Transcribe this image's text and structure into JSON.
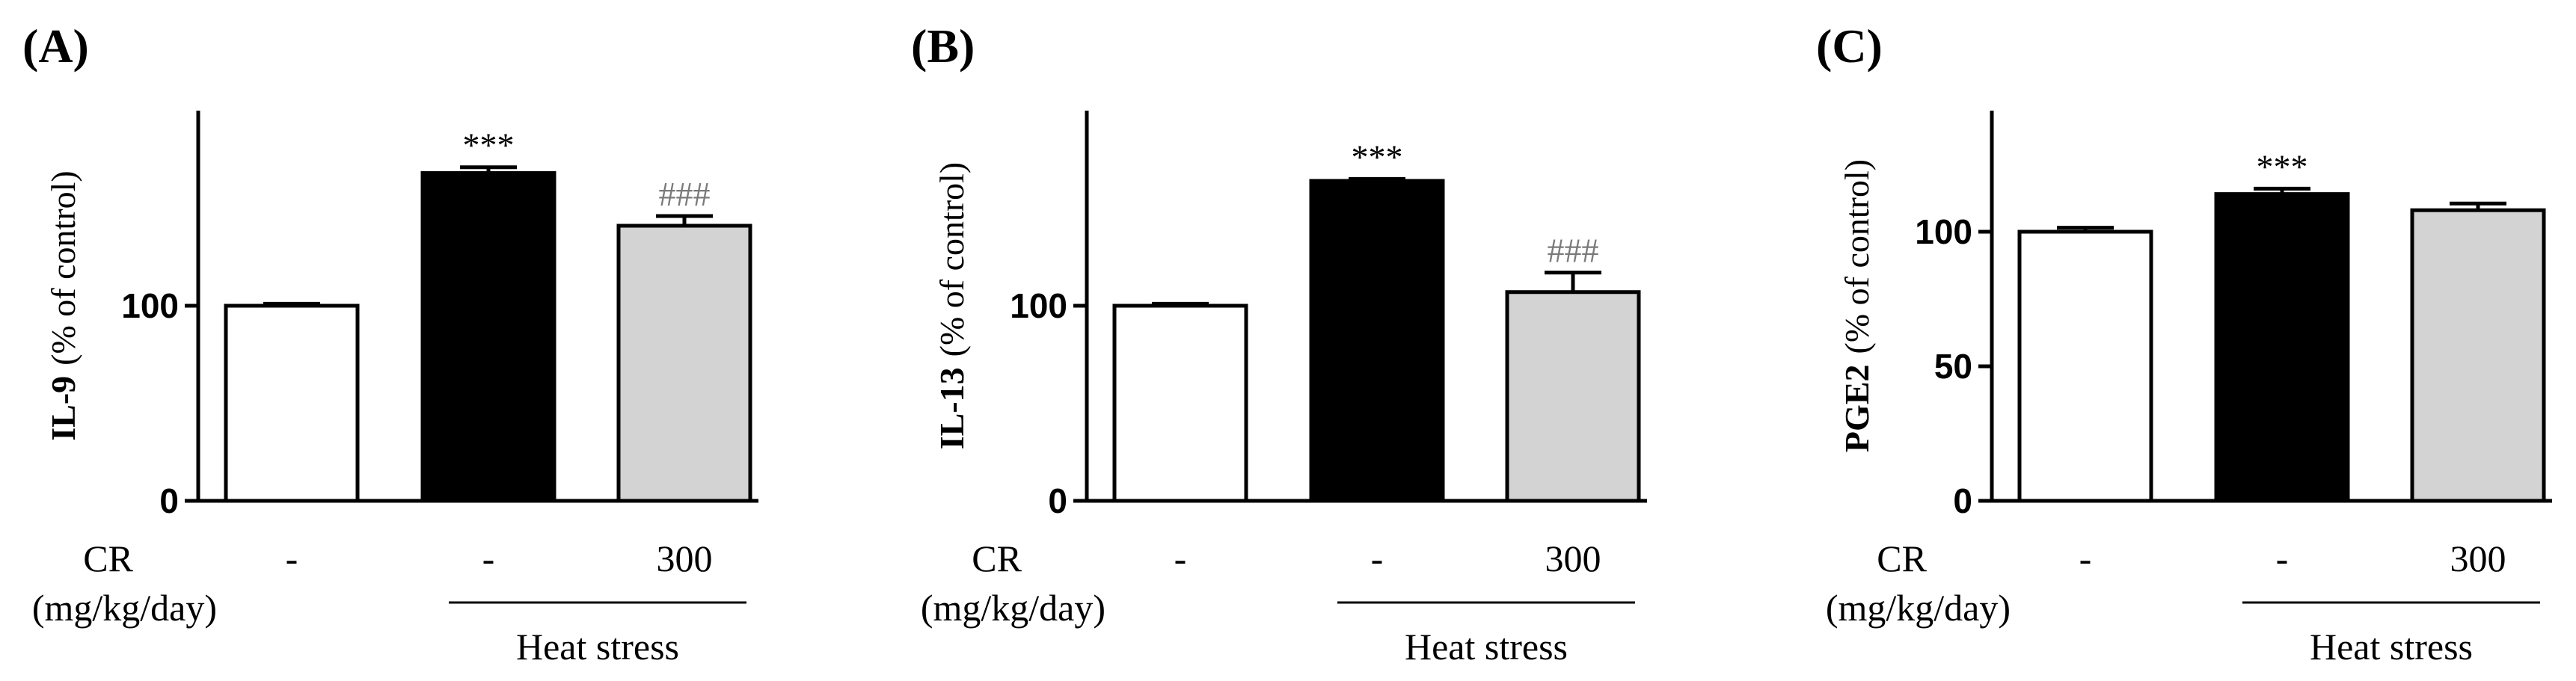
{
  "figure": {
    "row_label_cr": "CR",
    "row_label_unit": "(mg/kg/day)",
    "group_label": "Heat stress"
  },
  "chart_data": [
    {
      "type": "bar",
      "panel_label": "(A)",
      "ylabel_bold": "IL-9",
      "ylabel_rest": "(% of control)",
      "ylim": [
        0,
        200
      ],
      "yticks": [
        0,
        100
      ],
      "categories": [
        "-",
        "-",
        "300"
      ],
      "values": [
        100,
        168,
        141
      ],
      "errors": [
        1,
        3,
        5
      ],
      "fills": [
        "#ffffff",
        "#000000",
        "#d3d3d3"
      ],
      "annotations": [
        "",
        "***",
        "###"
      ],
      "annotation_styles": [
        "",
        "star",
        "hash"
      ]
    },
    {
      "type": "bar",
      "panel_label": "(B)",
      "ylabel_bold": "IL-13",
      "ylabel_rest": "(% of control)",
      "ylim": [
        0,
        200
      ],
      "yticks": [
        0,
        100
      ],
      "categories": [
        "-",
        "-",
        "300"
      ],
      "values": [
        100,
        164,
        107
      ],
      "errors": [
        1,
        1,
        10
      ],
      "fills": [
        "#ffffff",
        "#000000",
        "#d3d3d3"
      ],
      "annotations": [
        "",
        "***",
        "###"
      ],
      "annotation_styles": [
        "",
        "star",
        "hash"
      ]
    },
    {
      "type": "bar",
      "panel_label": "(C)",
      "ylabel_bold": "PGE2",
      "ylabel_rest": "(% of control)",
      "ylim": [
        0,
        145
      ],
      "yticks": [
        0,
        50,
        100
      ],
      "categories": [
        "-",
        "-",
        "300"
      ],
      "values": [
        100,
        114,
        108
      ],
      "errors": [
        1.5,
        2,
        2.5
      ],
      "fills": [
        "#ffffff",
        "#000000",
        "#d3d3d3"
      ],
      "annotations": [
        "",
        "***",
        ""
      ],
      "annotation_styles": [
        "",
        "star",
        ""
      ]
    }
  ]
}
